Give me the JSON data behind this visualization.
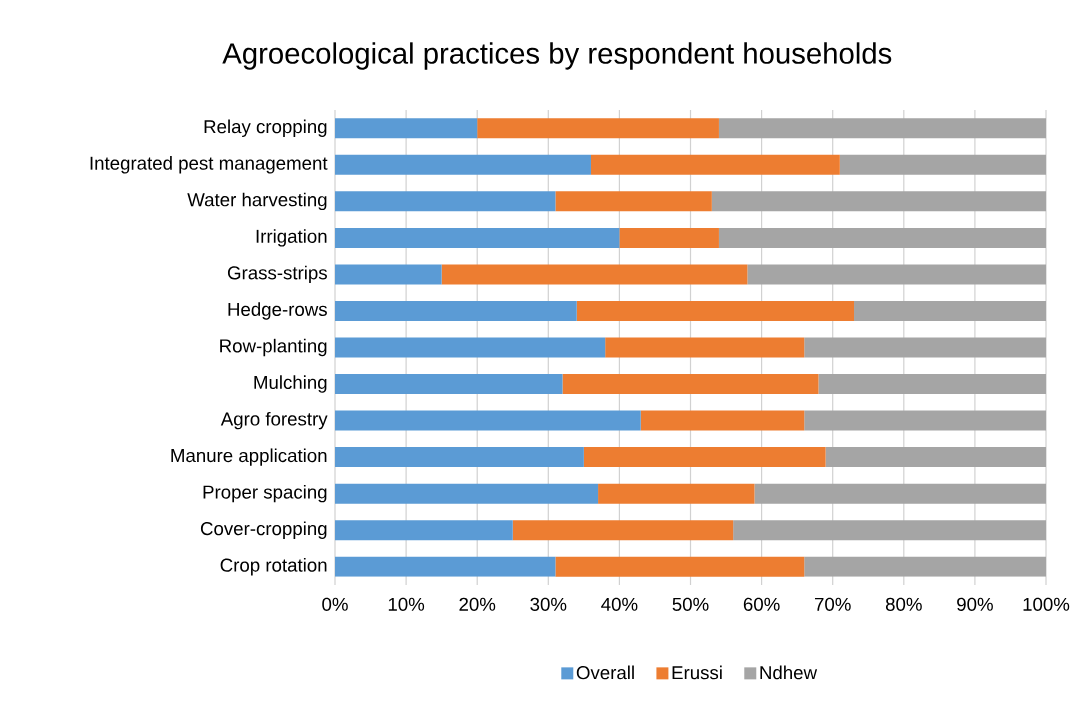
{
  "chart_data": {
    "type": "bar",
    "orientation": "horizontal",
    "stacked": true,
    "title": "Agroecological practices by respondent households",
    "categories": [
      "Relay cropping",
      "Integrated pest management",
      "Water harvesting",
      "Irrigation",
      "Grass-strips",
      "Hedge-rows",
      "Row-planting",
      "Mulching",
      "Agro forestry",
      "Manure application",
      "Proper spacing",
      "Cover-cropping",
      "Crop rotation"
    ],
    "series": [
      {
        "name": "Overall",
        "color": "#5b9bd5",
        "values": [
          20,
          36,
          31,
          40,
          15,
          34,
          38,
          32,
          43,
          35,
          37,
          25,
          31
        ]
      },
      {
        "name": "Erussi",
        "color": "#ed7d31",
        "values": [
          34,
          35,
          22,
          14,
          43,
          39,
          28,
          36,
          23,
          34,
          22,
          31,
          35
        ]
      },
      {
        "name": "Ndhew",
        "color": "#a5a5a5",
        "values": [
          46,
          29,
          47,
          46,
          42,
          27,
          34,
          32,
          34,
          31,
          41,
          44,
          34
        ]
      }
    ],
    "xlim": [
      0,
      100
    ],
    "xticks": [
      {
        "value": 0,
        "label": "0%"
      },
      {
        "value": 10,
        "label": "10%"
      },
      {
        "value": 20,
        "label": "20%"
      },
      {
        "value": 30,
        "label": "30%"
      },
      {
        "value": 40,
        "label": "40%"
      },
      {
        "value": 50,
        "label": "50%"
      },
      {
        "value": 60,
        "label": "60%"
      },
      {
        "value": 70,
        "label": "70%"
      },
      {
        "value": 80,
        "label": "80%"
      },
      {
        "value": 90,
        "label": "90%"
      },
      {
        "value": 100,
        "label": "100%"
      }
    ],
    "grid": "x",
    "legend": "bottom"
  }
}
